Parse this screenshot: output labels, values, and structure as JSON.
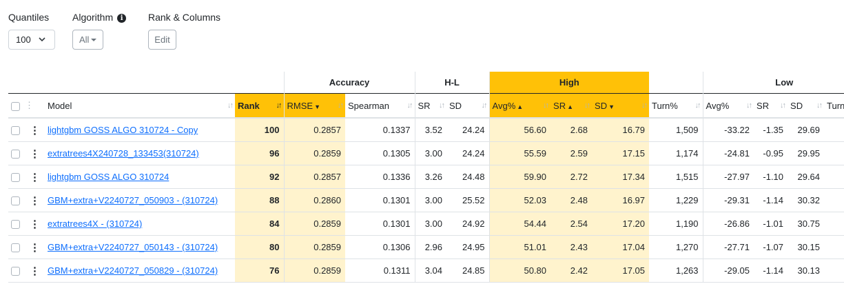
{
  "toolbar": {
    "quantiles_label": "Quantiles",
    "quantiles_value": "100",
    "algorithm_label": "Algorithm",
    "algorithm_value": "All",
    "rank_columns_label": "Rank & Columns",
    "edit_label": "Edit"
  },
  "groups": {
    "accuracy": "Accuracy",
    "hl": "H-L",
    "high": "High",
    "low": "Low"
  },
  "columns": {
    "model": "Model",
    "rank": "Rank",
    "rmse": "RMSE",
    "spearman": "Spearman",
    "hl_sr": "SR",
    "hl_sd": "SD",
    "high_avg": "Avg%",
    "high_sr": "SR",
    "high_sd": "SD",
    "high_turn": "Turn%",
    "low_avg": "Avg%",
    "low_sr": "SR",
    "low_sd": "SD",
    "low_turn": "Turn"
  },
  "rows": [
    {
      "model": "lightgbm GOSS ALGO 310724 - Copy",
      "rank": "100",
      "rmse": "0.2857",
      "spearman": "0.1337",
      "hl_sr": "3.52",
      "hl_sd": "24.24",
      "high_avg": "56.60",
      "high_sr": "2.68",
      "high_sd": "16.79",
      "high_turn": "1,509",
      "low_avg": "-33.22",
      "low_sr": "-1.35",
      "low_sd": "29.69"
    },
    {
      "model": "extratrees4X240728_133453(310724)",
      "rank": "96",
      "rmse": "0.2859",
      "spearman": "0.1305",
      "hl_sr": "3.00",
      "hl_sd": "24.24",
      "high_avg": "55.59",
      "high_sr": "2.59",
      "high_sd": "17.15",
      "high_turn": "1,174",
      "low_avg": "-24.81",
      "low_sr": "-0.95",
      "low_sd": "29.95"
    },
    {
      "model": "lightgbm GOSS ALGO 310724",
      "rank": "92",
      "rmse": "0.2857",
      "spearman": "0.1336",
      "hl_sr": "3.26",
      "hl_sd": "24.48",
      "high_avg": "59.90",
      "high_sr": "2.72",
      "high_sd": "17.34",
      "high_turn": "1,515",
      "low_avg": "-27.97",
      "low_sr": "-1.10",
      "low_sd": "29.64"
    },
    {
      "model": "GBM+extra+V2240727_050903 - (310724)",
      "rank": "88",
      "rmse": "0.2860",
      "spearman": "0.1301",
      "hl_sr": "3.00",
      "hl_sd": "25.52",
      "high_avg": "52.03",
      "high_sr": "2.48",
      "high_sd": "16.97",
      "high_turn": "1,229",
      "low_avg": "-29.31",
      "low_sr": "-1.14",
      "low_sd": "30.32"
    },
    {
      "model": "extratrees4X - (310724)",
      "rank": "84",
      "rmse": "0.2859",
      "spearman": "0.1301",
      "hl_sr": "3.00",
      "hl_sd": "24.92",
      "high_avg": "54.44",
      "high_sr": "2.54",
      "high_sd": "17.20",
      "high_turn": "1,190",
      "low_avg": "-26.86",
      "low_sr": "-1.01",
      "low_sd": "30.75"
    },
    {
      "model": "GBM+extra+V2240727_050143 - (310724)",
      "rank": "80",
      "rmse": "0.2859",
      "spearman": "0.1306",
      "hl_sr": "2.96",
      "hl_sd": "24.95",
      "high_avg": "51.01",
      "high_sr": "2.43",
      "high_sd": "17.04",
      "high_turn": "1,270",
      "low_avg": "-27.71",
      "low_sr": "-1.07",
      "low_sd": "30.15"
    },
    {
      "model": "GBM+extra+V2240727_050829 - (310724)",
      "rank": "76",
      "rmse": "0.2859",
      "spearman": "0.1311",
      "hl_sr": "3.04",
      "hl_sd": "24.85",
      "high_avg": "50.80",
      "high_sr": "2.42",
      "high_sd": "17.05",
      "high_turn": "1,263",
      "low_avg": "-29.05",
      "low_sr": "-1.14",
      "low_sd": "30.13"
    }
  ]
}
